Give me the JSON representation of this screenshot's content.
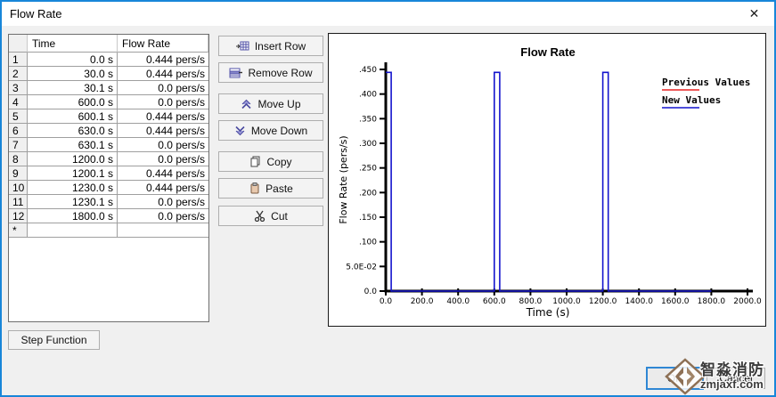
{
  "window": {
    "title": "Flow Rate",
    "close_glyph": "✕"
  },
  "colors": {
    "accent": "#1886d9",
    "new_values_blue": "#1414cd",
    "previous_values_red": "#e82222",
    "watermark_bronze": "#8d7055"
  },
  "table": {
    "columns": [
      "Time",
      "Flow Rate"
    ],
    "rows": [
      {
        "n": "1",
        "time": "0.0 s",
        "flow": "0.444 pers/s"
      },
      {
        "n": "2",
        "time": "30.0 s",
        "flow": "0.444 pers/s"
      },
      {
        "n": "3",
        "time": "30.1 s",
        "flow": "0.0 pers/s"
      },
      {
        "n": "4",
        "time": "600.0 s",
        "flow": "0.0 pers/s"
      },
      {
        "n": "5",
        "time": "600.1 s",
        "flow": "0.444 pers/s"
      },
      {
        "n": "6",
        "time": "630.0 s",
        "flow": "0.444 pers/s"
      },
      {
        "n": "7",
        "time": "630.1 s",
        "flow": "0.0 pers/s"
      },
      {
        "n": "8",
        "time": "1200.0 s",
        "flow": "0.0 pers/s"
      },
      {
        "n": "9",
        "time": "1200.1 s",
        "flow": "0.444 pers/s"
      },
      {
        "n": "10",
        "time": "1230.0 s",
        "flow": "0.444 pers/s"
      },
      {
        "n": "11",
        "time": "1230.1 s",
        "flow": "0.0 pers/s"
      },
      {
        "n": "12",
        "time": "1800.0 s",
        "flow": "0.0 pers/s"
      },
      {
        "n": "*",
        "time": "",
        "flow": ""
      }
    ]
  },
  "side_buttons": [
    {
      "label": "Insert Row"
    },
    {
      "label": "Remove Row"
    },
    {
      "label": "Move Up"
    },
    {
      "label": "Move Down"
    },
    {
      "label": "Copy"
    },
    {
      "label": "Paste"
    },
    {
      "label": "Cut"
    }
  ],
  "footer": {
    "step_function_label": "Step Function",
    "ok_label": "OK",
    "cancel_label": "Cancel"
  },
  "watermark": {
    "brand": "智淼消防",
    "domain": "zmjaxf.com"
  },
  "chart_data": {
    "type": "line",
    "title": "Flow Rate",
    "xlabel": "Time (s)",
    "ylabel": "Flow Rate (pers/s)",
    "xlim": [
      0,
      2000
    ],
    "ylim": [
      0,
      0.45
    ],
    "grid": false,
    "legend_position": "top-right",
    "x_ticks": [
      {
        "v": 0,
        "label": "0.0"
      },
      {
        "v": 200,
        "label": "200.0"
      },
      {
        "v": 400,
        "label": "400.0"
      },
      {
        "v": 600,
        "label": "600.0"
      },
      {
        "v": 800,
        "label": "800.0"
      },
      {
        "v": 1000,
        "label": "1000.0"
      },
      {
        "v": 1200,
        "label": "1200.0"
      },
      {
        "v": 1400,
        "label": "1400.0"
      },
      {
        "v": 1600,
        "label": "1600.0"
      },
      {
        "v": 1800,
        "label": "1800.0"
      },
      {
        "v": 2000,
        "label": "2000.0"
      }
    ],
    "y_ticks": [
      {
        "v": 0,
        "label": "0.0"
      },
      {
        "v": 0.05,
        "label": "5.0E-02"
      },
      {
        "v": 0.1,
        "label": ".100"
      },
      {
        "v": 0.15,
        "label": ".150"
      },
      {
        "v": 0.2,
        "label": ".200"
      },
      {
        "v": 0.25,
        "label": ".250"
      },
      {
        "v": 0.3,
        "label": ".300"
      },
      {
        "v": 0.35,
        "label": ".350"
      },
      {
        "v": 0.4,
        "label": ".400"
      },
      {
        "v": 0.45,
        "label": ".450"
      }
    ],
    "legend": [
      {
        "name": "Previous Values",
        "color": "#e82222"
      },
      {
        "name": "New Values",
        "color": "#1414cd"
      }
    ],
    "series": [
      {
        "name": "New Values",
        "color": "#1414cd",
        "x": [
          0,
          30,
          30.1,
          600,
          600.1,
          630,
          630.1,
          1200,
          1200.1,
          1230,
          1230.1,
          1800
        ],
        "y": [
          0.444,
          0.444,
          0,
          0,
          0.444,
          0.444,
          0,
          0,
          0.444,
          0.444,
          0,
          0
        ]
      }
    ]
  }
}
